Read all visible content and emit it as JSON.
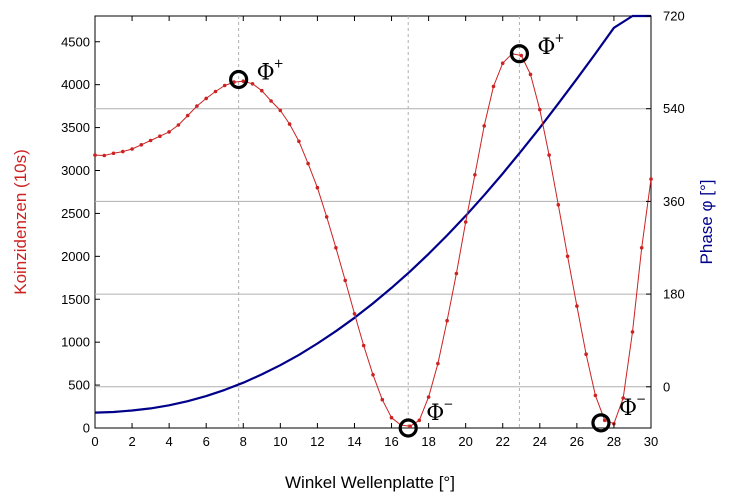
{
  "chart_data": {
    "type": "line",
    "xlabel": "Winkel Wellenplatte [°]",
    "ylabel_left": "Koinzidenzen (10s)",
    "ylabel_right": "Phase φ [°]",
    "xlim": [
      0,
      30
    ],
    "ylim_left": [
      0,
      4800
    ],
    "ylim_right": [
      -80,
      720
    ],
    "x_ticks": [
      0,
      2,
      4,
      6,
      8,
      10,
      12,
      14,
      16,
      18,
      20,
      22,
      24,
      26,
      28,
      30
    ],
    "y_left_ticks": [
      0,
      500,
      1000,
      1500,
      2000,
      2500,
      3000,
      3500,
      4000,
      4500
    ],
    "y_right_ticks": [
      0,
      180,
      360,
      540,
      720
    ],
    "colors": {
      "counts": "#cc2222",
      "phase": "#00008b",
      "left_axis_title": "#cc2222",
      "right_axis_title": "#00008b"
    },
    "grid": {
      "vertical_dashed_x": [
        7.75,
        16.9,
        22.9
      ],
      "horizontal_right_y": [
        0,
        180,
        360,
        540
      ]
    },
    "series": [
      {
        "role": "counts",
        "axis": "left",
        "x": [
          0,
          0.5,
          1,
          1.5,
          2,
          2.5,
          3,
          3.5,
          4,
          4.5,
          5,
          5.5,
          6,
          6.5,
          7,
          7.5,
          8,
          8.5,
          9,
          9.5,
          10,
          10.5,
          11,
          11.5,
          12,
          12.5,
          13,
          13.5,
          14,
          14.5,
          15,
          15.5,
          16,
          16.5,
          17,
          17.5,
          18,
          18.5,
          19,
          19.5,
          20,
          20.5,
          21,
          21.5,
          22,
          22.5,
          23,
          23.5,
          24,
          24.5,
          25,
          25.5,
          26,
          26.5,
          27,
          27.5,
          28,
          28.5,
          29,
          29.5,
          30
        ],
        "y": [
          3180,
          3175,
          3200,
          3220,
          3250,
          3300,
          3350,
          3400,
          3450,
          3530,
          3640,
          3750,
          3840,
          3920,
          3990,
          4030,
          4040,
          4010,
          3930,
          3810,
          3700,
          3540,
          3340,
          3080,
          2800,
          2460,
          2100,
          1720,
          1330,
          960,
          620,
          330,
          120,
          35,
          20,
          90,
          360,
          750,
          1250,
          1800,
          2400,
          2950,
          3520,
          3980,
          4250,
          4360,
          4340,
          4120,
          3710,
          3180,
          2600,
          2000,
          1420,
          860,
          380,
          90,
          50,
          350,
          1120,
          2100,
          2900
        ]
      },
      {
        "role": "phase",
        "axis": "right",
        "x": [
          0,
          1,
          2,
          3,
          4,
          5,
          6,
          7,
          8,
          9,
          10,
          11,
          12,
          13,
          14,
          15,
          16,
          17,
          18,
          19,
          20,
          21,
          22,
          23,
          24,
          25,
          26,
          27,
          28,
          29,
          30
        ],
        "y": [
          -50,
          -49,
          -46,
          -42,
          -36,
          -28,
          -18,
          -6,
          8,
          24,
          42,
          62,
          84,
          108,
          134,
          162,
          192,
          224,
          258,
          294,
          332,
          372,
          414,
          458,
          503,
          550,
          598,
          647,
          697,
          748,
          800
        ]
      }
    ],
    "markers": [
      {
        "x": 7.75,
        "y": 4060,
        "label": "Φ",
        "sign": "+"
      },
      {
        "x": 16.9,
        "y": 0,
        "label": "Φ",
        "sign": "−"
      },
      {
        "x": 22.9,
        "y": 4360,
        "label": "Φ",
        "sign": "+"
      },
      {
        "x": 27.3,
        "y": 60,
        "label": "Φ",
        "sign": "−"
      }
    ]
  }
}
